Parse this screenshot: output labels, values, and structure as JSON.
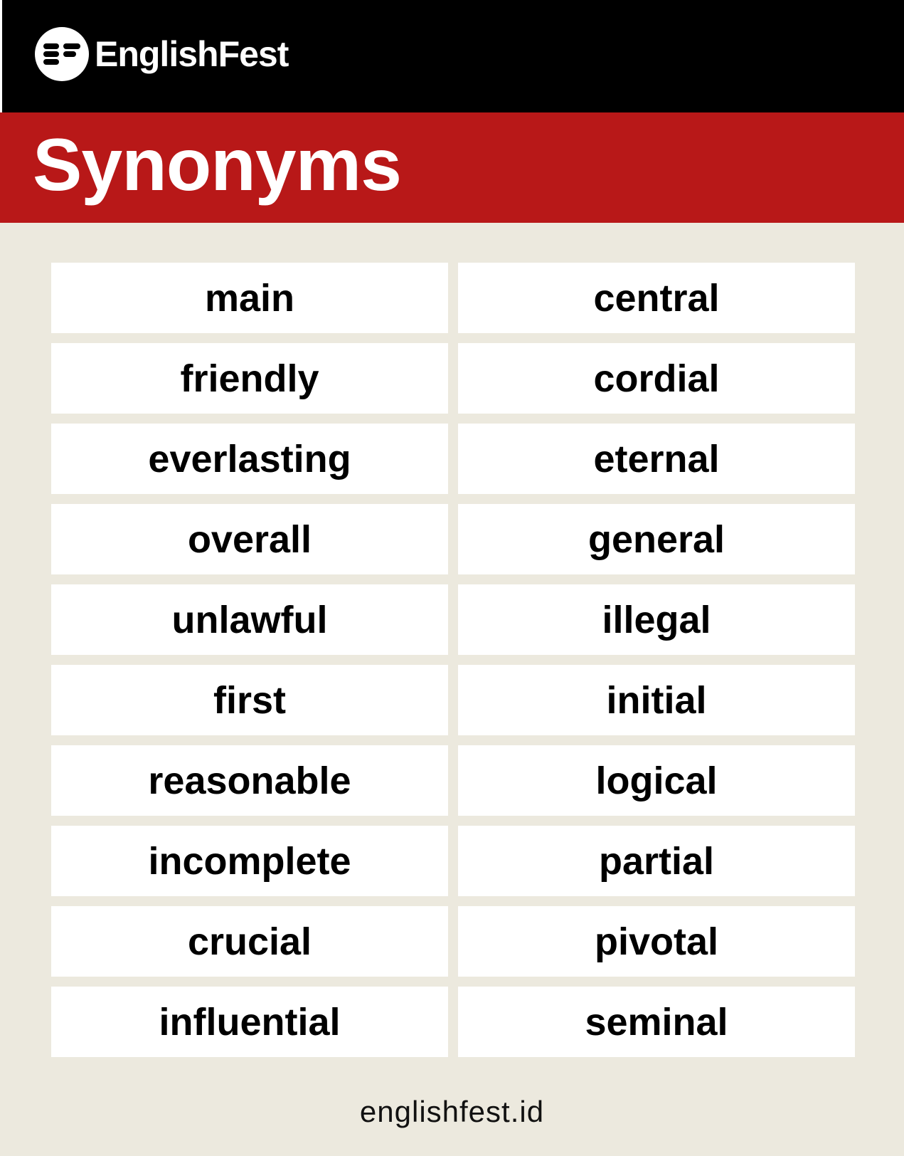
{
  "header": {
    "brand_name": "EnglishFest",
    "logo_icon": "englishfest-logo-icon",
    "background": "#000000"
  },
  "banner": {
    "title": "Synonyms",
    "background": "#b81818"
  },
  "synonym_pairs": [
    {
      "word": "main",
      "synonym": "central"
    },
    {
      "word": "friendly",
      "synonym": "cordial"
    },
    {
      "word": "everlasting",
      "synonym": "eternal"
    },
    {
      "word": "overall",
      "synonym": "general"
    },
    {
      "word": "unlawful",
      "synonym": "illegal"
    },
    {
      "word": "first",
      "synonym": "initial"
    },
    {
      "word": "reasonable",
      "synonym": "logical"
    },
    {
      "word": "incomplete",
      "synonym": "partial"
    },
    {
      "word": "crucial",
      "synonym": "pivotal"
    },
    {
      "word": "influential",
      "synonym": "seminal"
    }
  ],
  "footer": {
    "website": "englishfest.id"
  },
  "colors": {
    "page_background": "#ece9de",
    "cell_background": "#ffffff",
    "accent_red": "#b81818"
  }
}
